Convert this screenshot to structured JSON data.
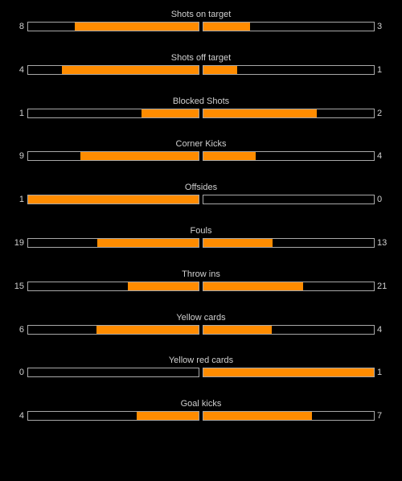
{
  "colors": {
    "background": "#000000",
    "fill": "#ff8c00",
    "bar_border": "#a8a8a8",
    "text": "#d0d0d0"
  },
  "stats": [
    {
      "label": "Shots on target",
      "home": "8",
      "away": "3",
      "home_fraction": 0.727,
      "away_fraction": 0.273
    },
    {
      "label": "Shots off target",
      "home": "4",
      "away": "1",
      "home_fraction": 0.8,
      "away_fraction": 0.2
    },
    {
      "label": "Blocked Shots",
      "home": "1",
      "away": "2",
      "home_fraction": 0.333,
      "away_fraction": 0.667
    },
    {
      "label": "Corner Kicks",
      "home": "9",
      "away": "4",
      "home_fraction": 0.692,
      "away_fraction": 0.308
    },
    {
      "label": "Offsides",
      "home": "1",
      "away": "0",
      "home_fraction": 1.0,
      "away_fraction": 0.0
    },
    {
      "label": "Fouls",
      "home": "19",
      "away": "13",
      "home_fraction": 0.594,
      "away_fraction": 0.406
    },
    {
      "label": "Throw ins",
      "home": "15",
      "away": "21",
      "home_fraction": 0.417,
      "away_fraction": 0.583
    },
    {
      "label": "Yellow cards",
      "home": "6",
      "away": "4",
      "home_fraction": 0.6,
      "away_fraction": 0.4
    },
    {
      "label": "Yellow red cards",
      "home": "0",
      "away": "1",
      "home_fraction": 0.0,
      "away_fraction": 1.0
    },
    {
      "label": "Goal kicks",
      "home": "4",
      "away": "7",
      "home_fraction": 0.364,
      "away_fraction": 0.636
    }
  ]
}
